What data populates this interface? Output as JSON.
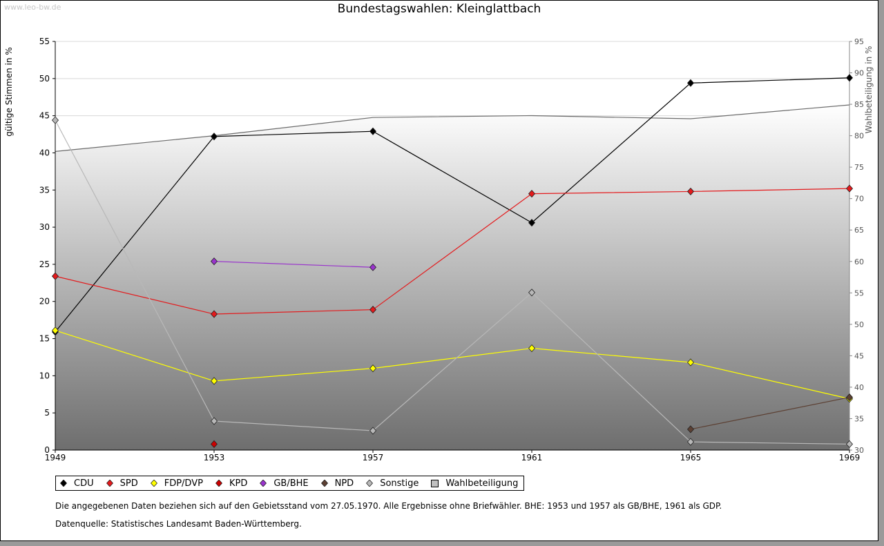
{
  "watermark": "www.leo-bw.de",
  "chart_data": {
    "type": "line",
    "title": "Bundestagswahlen: Kleinglattbach",
    "x": [
      1949,
      1953,
      1957,
      1961,
      1965,
      1969
    ],
    "ylabel": "gültige Stimmen in %",
    "y2label": "Wahlbeteiligung in %",
    "ylim": [
      0,
      55
    ],
    "y2lim": [
      30,
      95
    ],
    "yticks": [
      0,
      5,
      10,
      15,
      20,
      25,
      30,
      35,
      40,
      45,
      50,
      55
    ],
    "y2ticks": [
      30,
      35,
      40,
      45,
      50,
      55,
      60,
      65,
      70,
      75,
      80,
      85,
      90,
      95
    ],
    "grid": true,
    "legend_position": "bottom",
    "series": [
      {
        "name": "CDU",
        "color": "#000000",
        "values": [
          15.9,
          42.2,
          42.9,
          30.6,
          49.4,
          50.1
        ]
      },
      {
        "name": "SPD",
        "color": "#e41a1c",
        "values": [
          23.4,
          18.3,
          18.9,
          34.5,
          34.8,
          35.2
        ]
      },
      {
        "name": "FDP/DVP",
        "color": "#ffff00",
        "values": [
          16.1,
          9.3,
          11.0,
          13.7,
          11.8,
          6.9
        ]
      },
      {
        "name": "KPD",
        "color": "#cc0000",
        "values": [
          null,
          0.8,
          null,
          null,
          null,
          null
        ]
      },
      {
        "name": "GB/BHE",
        "color": "#9933cc",
        "values": [
          null,
          25.4,
          24.6,
          null,
          null,
          null
        ]
      },
      {
        "name": "NPD",
        "color": "#5c4033",
        "values": [
          null,
          null,
          null,
          null,
          2.8,
          7.1
        ]
      },
      {
        "name": "Sonstige",
        "color": "#b8b8b8",
        "values": [
          44.4,
          3.9,
          2.6,
          21.2,
          1.1,
          0.8
        ]
      }
    ],
    "turnout": {
      "name": "Wahlbeteiligung",
      "values": [
        77.5,
        80.0,
        82.9,
        83.2,
        82.7,
        84.9
      ]
    }
  },
  "notes": [
    "Die angegebenen Daten beziehen sich auf den Gebietsstand vom 27.05.1970. Alle Ergebnisse ohne Briefwähler. BHE: 1953 und 1957 als GB/BHE, 1961 als GDP.",
    "Datenquelle: Statistisches Landesamt Baden-Württemberg."
  ]
}
